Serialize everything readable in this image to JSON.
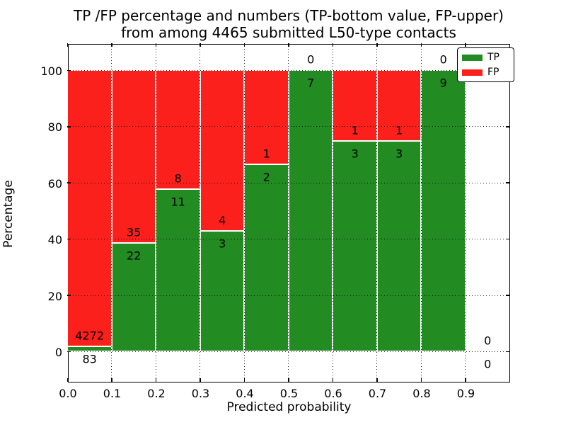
{
  "title": {
    "line1": "TP /FP percentage and numbers (TP-bottom value, FP-upper)",
    "line2": "from among 4465 submitted L50-type contacts"
  },
  "chart_data": {
    "type": "bar",
    "stacked": true,
    "title": "TP /FP percentage and numbers (TP-bottom value, FP-upper) from among 4465 submitted L50-type contacts",
    "xlabel": "Predicted probability",
    "ylabel": "Percentage",
    "total_contacts": 4465,
    "xlim": [
      0.0,
      1.0
    ],
    "ylim": [
      -10.8,
      109.6
    ],
    "x_tick_values": [
      0.0,
      0.1,
      0.2,
      0.3,
      0.4,
      0.5,
      0.6,
      0.7,
      0.8,
      0.9
    ],
    "x_tick_labels": [
      "0.0",
      "0.1",
      "0.2",
      "0.3",
      "0.4",
      "0.5",
      "0.6",
      "0.7",
      "0.8",
      "0.9"
    ],
    "y_tick_values": [
      0,
      20,
      40,
      60,
      80,
      100
    ],
    "y_tick_labels": [
      "0",
      "20",
      "40",
      "60",
      "80",
      "100"
    ],
    "grid": true,
    "grid_style": "dotted",
    "legend_position": "upper right",
    "series": [
      {
        "name": "TP",
        "color": "#228b22"
      },
      {
        "name": "FP",
        "color": "#fb201c"
      }
    ],
    "bins": [
      {
        "range": [
          0.0,
          0.1
        ],
        "tp": 83,
        "fp": 4272,
        "tp_pct": 1.91
      },
      {
        "range": [
          0.1,
          0.2
        ],
        "tp": 22,
        "fp": 35,
        "tp_pct": 38.6
      },
      {
        "range": [
          0.2,
          0.3
        ],
        "tp": 11,
        "fp": 8,
        "tp_pct": 57.89
      },
      {
        "range": [
          0.3,
          0.4
        ],
        "tp": 3,
        "fp": 4,
        "tp_pct": 42.86
      },
      {
        "range": [
          0.4,
          0.5
        ],
        "tp": 2,
        "fp": 1,
        "tp_pct": 66.67
      },
      {
        "range": [
          0.5,
          0.6
        ],
        "tp": 7,
        "fp": 0,
        "tp_pct": 100
      },
      {
        "range": [
          0.6,
          0.7
        ],
        "tp": 3,
        "fp": 1,
        "tp_pct": 75
      },
      {
        "range": [
          0.7,
          0.8
        ],
        "tp": 3,
        "fp": 1,
        "tp_pct": 75
      },
      {
        "range": [
          0.8,
          0.9
        ],
        "tp": 9,
        "fp": 0,
        "tp_pct": 100
      },
      {
        "range": [
          0.9,
          1.0
        ],
        "tp": 0,
        "fp": 0,
        "tp_pct": null
      }
    ]
  },
  "legend": {
    "items": [
      {
        "label": "TP",
        "color": "#228b22"
      },
      {
        "label": "FP",
        "color": "#fb201c"
      }
    ]
  }
}
